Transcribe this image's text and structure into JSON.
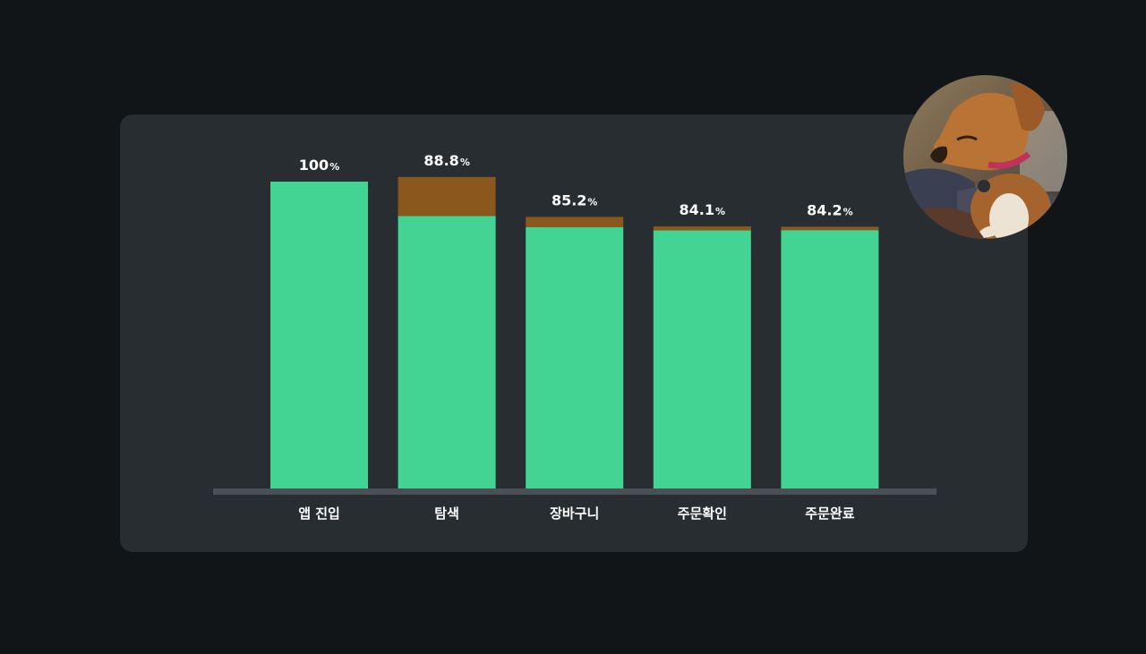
{
  "chart_data": {
    "type": "bar",
    "stacked": true,
    "categories": [
      "앱 진입",
      "탐색",
      "장바구니",
      "주문확인",
      "주문완료"
    ],
    "series": [
      {
        "values": [
          100,
          88.8,
          85.2,
          84.1,
          84.2
        ],
        "color": "#43d494"
      },
      {
        "values": [
          0,
          12.7,
          3.3,
          1.3,
          1.1
        ],
        "color": "#8a581c"
      }
    ],
    "value_labels": [
      {
        "number": "100",
        "unit": "%"
      },
      {
        "number": "88.8",
        "unit": "%"
      },
      {
        "number": "85.2",
        "unit": "%"
      },
      {
        "number": "84.1",
        "unit": "%"
      },
      {
        "number": "84.2",
        "unit": "%"
      }
    ],
    "ylim": [
      0,
      100
    ],
    "grid": false,
    "legend": "none"
  },
  "theme": {
    "page_bg": "#111518",
    "card_bg": "#282d31",
    "baseline": "#4a5055",
    "label_color": "#ffffff"
  },
  "avatar": {
    "icon": "dog-photo-avatar"
  }
}
